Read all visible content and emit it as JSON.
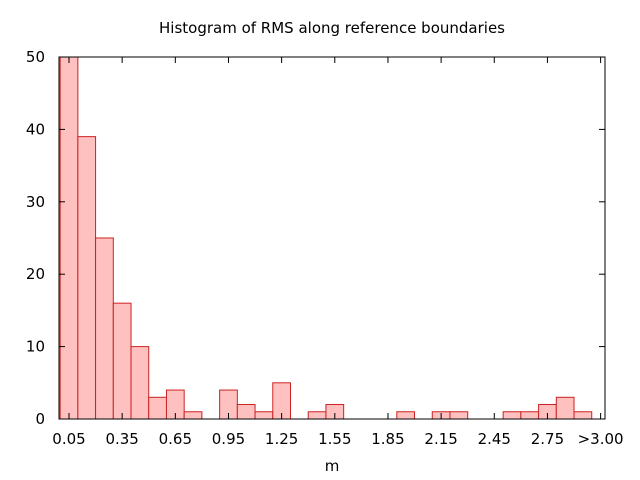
{
  "chart_data": {
    "type": "bar",
    "title": "Histogram of RMS along reference boundaries",
    "xlabel": "m",
    "ylabel": "",
    "ylim": [
      0,
      50
    ],
    "yticks": [
      "0",
      "10",
      "20",
      "30",
      "40",
      "50"
    ],
    "xticks": [
      "0.05",
      "0.35",
      "0.65",
      "0.95",
      "1.25",
      "1.55",
      "1.85",
      "2.15",
      "2.45",
      "2.75",
      ">3.00"
    ],
    "categories": [
      "0.05",
      "0.15",
      "0.25",
      "0.35",
      "0.45",
      "0.55",
      "0.65",
      "0.75",
      "0.85",
      "0.95",
      "1.05",
      "1.15",
      "1.25",
      "1.35",
      "1.45",
      "1.55",
      "1.65",
      "1.75",
      "1.85",
      "1.95",
      "2.05",
      "2.15",
      "2.25",
      "2.35",
      "2.45",
      "2.55",
      "2.65",
      "2.75",
      "2.85",
      "2.95",
      ">3.00"
    ],
    "values": [
      50,
      39,
      25,
      16,
      10,
      3,
      4,
      1,
      0,
      4,
      2,
      1,
      5,
      0,
      1,
      2,
      0,
      0,
      0,
      1,
      0,
      1,
      1,
      0,
      0,
      1,
      1,
      2,
      3,
      1,
      0
    ],
    "grid": false,
    "legend": "none",
    "colors": {
      "bar_fill": "#ffc0c0",
      "bar_stroke": "#cc2222",
      "axis": "#000000"
    }
  }
}
